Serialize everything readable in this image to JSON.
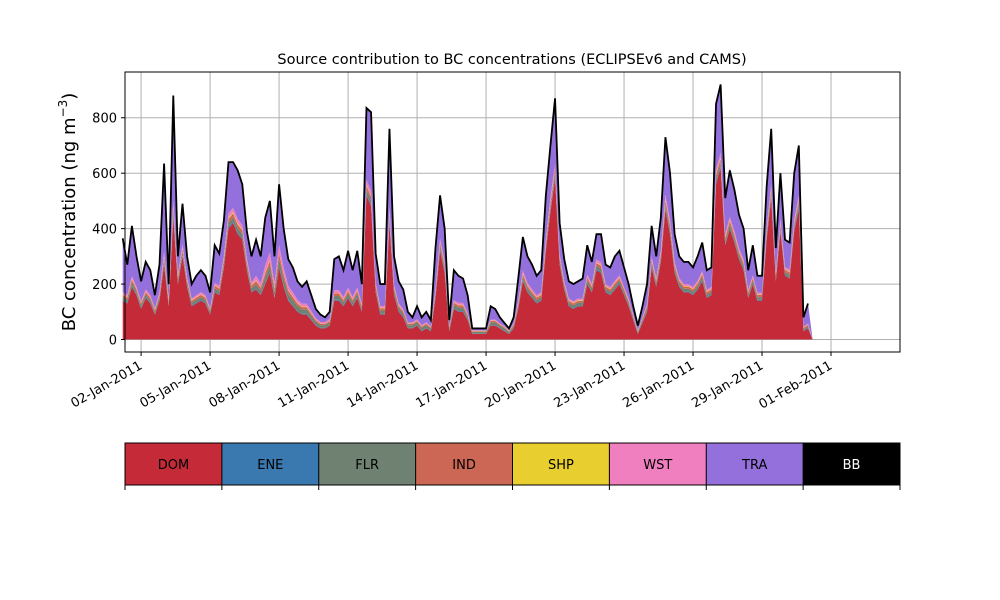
{
  "chart_data": {
    "type": "area",
    "title": "Source contribution to BC concentrations (ECLIPSEv6 and CAMS)",
    "ylabel_main": "BC concentration (ng m",
    "ylabel_sup": "−3",
    "ylabel_close": ")",
    "xlabel": "",
    "ylim": [
      -45,
      965
    ],
    "xlim_days": [
      -0.7,
      33.0
    ],
    "yticks": [
      0,
      200,
      400,
      600,
      800
    ],
    "ytick_labels": [
      "0",
      "200",
      "400",
      "600",
      "800"
    ],
    "xtick_labels": [
      "02-Jan-2011",
      "05-Jan-2011",
      "08-Jan-2011",
      "11-Jan-2011",
      "14-Jan-2011",
      "17-Jan-2011",
      "20-Jan-2011",
      "23-Jan-2011",
      "26-Jan-2011",
      "29-Jan-2011",
      "01-Feb-2011"
    ],
    "xticks_days": [
      0,
      3,
      6,
      9,
      12,
      15,
      18,
      21,
      24,
      27,
      30
    ],
    "grid": true,
    "x_days": [
      -0.8,
      -0.6,
      -0.4,
      -0.2,
      0.0,
      0.2,
      0.4,
      0.6,
      0.8,
      1.0,
      1.2,
      1.4,
      1.6,
      1.8,
      2.0,
      2.2,
      2.4,
      2.6,
      2.8,
      3.0,
      3.2,
      3.4,
      3.6,
      3.8,
      4.0,
      4.2,
      4.4,
      4.6,
      4.8,
      5.0,
      5.2,
      5.4,
      5.6,
      5.8,
      6.0,
      6.2,
      6.4,
      6.6,
      6.8,
      7.0,
      7.2,
      7.4,
      7.6,
      7.8,
      8.0,
      8.2,
      8.4,
      8.6,
      8.8,
      9.0,
      9.2,
      9.4,
      9.6,
      9.8,
      10.0,
      10.2,
      10.4,
      10.6,
      10.8,
      11.0,
      11.2,
      11.4,
      11.6,
      11.8,
      12.0,
      12.2,
      12.4,
      12.6,
      12.8,
      13.0,
      13.2,
      13.4,
      13.6,
      13.8,
      14.0,
      14.2,
      14.4,
      14.6,
      14.8,
      15.0,
      15.2,
      15.4,
      15.6,
      15.8,
      16.0,
      16.2,
      16.4,
      16.6,
      16.8,
      17.0,
      17.2,
      17.4,
      17.6,
      17.8,
      18.0,
      18.2,
      18.4,
      18.6,
      18.8,
      19.0,
      19.2,
      19.4,
      19.6,
      19.8,
      20.0,
      20.2,
      20.4,
      20.6,
      20.8,
      21.0,
      21.2,
      21.4,
      21.6,
      21.8,
      22.0,
      22.2,
      22.4,
      22.6,
      22.8,
      23.0,
      23.2,
      23.4,
      23.6,
      23.8,
      24.0,
      24.2,
      24.4,
      24.6,
      24.8,
      25.0,
      25.2,
      25.4,
      25.6,
      25.8,
      26.0,
      26.2,
      26.4,
      26.6,
      26.8,
      27.0,
      27.2,
      27.4,
      27.6,
      27.8,
      28.0,
      28.2,
      28.4,
      28.6,
      28.8,
      29.0,
      29.2,
      29.4,
      29.6,
      29.8,
      30.0
    ],
    "total": [
      365,
      270,
      410,
      300,
      210,
      280,
      250,
      160,
      270,
      635,
      200,
      880,
      300,
      490,
      300,
      200,
      230,
      250,
      230,
      170,
      340,
      310,
      430,
      640,
      640,
      610,
      560,
      390,
      300,
      360,
      300,
      440,
      500,
      300,
      560,
      400,
      290,
      260,
      210,
      190,
      210,
      160,
      110,
      90,
      80,
      100,
      290,
      300,
      250,
      320,
      250,
      320,
      200,
      835,
      820,
      310,
      200,
      200,
      760,
      300,
      210,
      180,
      100,
      80,
      120,
      80,
      100,
      70,
      330,
      520,
      400,
      70,
      250,
      230,
      220,
      160,
      40,
      40,
      40,
      40,
      120,
      110,
      80,
      60,
      40,
      80,
      220,
      370,
      300,
      270,
      230,
      250,
      520,
      700,
      870,
      420,
      290,
      210,
      200,
      210,
      220,
      340,
      280,
      380,
      380,
      270,
      260,
      300,
      320,
      260,
      200,
      120,
      50,
      120,
      200,
      410,
      300,
      440,
      730,
      600,
      380,
      300,
      280,
      280,
      260,
      300,
      350,
      250,
      260,
      850,
      920,
      510,
      610,
      540,
      450,
      400,
      250,
      340,
      230,
      230,
      550,
      760,
      330,
      600,
      360,
      350,
      600,
      700,
      80,
      130
    ],
    "series": [
      {
        "name": "DOM",
        "color": "#c42a37",
        "values": [
          140,
          130,
          190,
          160,
          110,
          150,
          130,
          90,
          140,
          270,
          120,
          440,
          200,
          300,
          190,
          120,
          130,
          140,
          130,
          90,
          170,
          160,
          260,
          400,
          420,
          380,
          360,
          250,
          170,
          180,
          160,
          200,
          240,
          150,
          260,
          190,
          140,
          120,
          100,
          90,
          90,
          70,
          50,
          40,
          40,
          50,
          140,
          140,
          120,
          150,
          120,
          150,
          100,
          520,
          480,
          170,
          90,
          90,
          420,
          160,
          100,
          80,
          40,
          40,
          50,
          30,
          40,
          30,
          150,
          320,
          240,
          30,
          110,
          100,
          100,
          70,
          20,
          20,
          20,
          20,
          50,
          50,
          40,
          30,
          20,
          40,
          110,
          210,
          170,
          150,
          130,
          140,
          320,
          460,
          580,
          270,
          180,
          120,
          110,
          120,
          120,
          200,
          170,
          250,
          240,
          170,
          160,
          180,
          200,
          160,
          120,
          70,
          20,
          60,
          100,
          260,
          190,
          280,
          470,
          380,
          240,
          190,
          170,
          170,
          160,
          180,
          210,
          150,
          160,
          560,
          620,
          340,
          400,
          350,
          290,
          250,
          150,
          200,
          140,
          140,
          360,
          510,
          210,
          390,
          230,
          220,
          390,
          470,
          30,
          40
        ]
      },
      {
        "name": "ENE",
        "color": "#3a78b0",
        "values": [
          3,
          3,
          4,
          3,
          3,
          3,
          3,
          2,
          3,
          4,
          3,
          5,
          3,
          4,
          3,
          3,
          3,
          3,
          3,
          2,
          3,
          3,
          4,
          5,
          5,
          5,
          5,
          4,
          3,
          3,
          3,
          4,
          4,
          3,
          4,
          4,
          3,
          3,
          3,
          3,
          3,
          2,
          2,
          2,
          2,
          2,
          3,
          3,
          3,
          3,
          3,
          3,
          2,
          5,
          5,
          3,
          3,
          3,
          5,
          3,
          3,
          2,
          2,
          2,
          2,
          2,
          2,
          2,
          3,
          4,
          4,
          2,
          3,
          3,
          3,
          2,
          1,
          1,
          1,
          1,
          2,
          2,
          2,
          2,
          1,
          2,
          3,
          4,
          3,
          3,
          3,
          3,
          4,
          5,
          5,
          4,
          3,
          3,
          3,
          3,
          3,
          3,
          3,
          4,
          4,
          3,
          3,
          3,
          3,
          3,
          3,
          2,
          1,
          2,
          3,
          4,
          3,
          4,
          5,
          5,
          4,
          3,
          3,
          3,
          3,
          3,
          4,
          3,
          3,
          5,
          5,
          4,
          4,
          4,
          4,
          4,
          3,
          3,
          3,
          3,
          4,
          5,
          3,
          4,
          3,
          3,
          4,
          5,
          2,
          2
        ]
      },
      {
        "name": "FLR",
        "color": "#6f8272",
        "values": [
          10,
          10,
          12,
          10,
          10,
          10,
          10,
          8,
          10,
          15,
          10,
          18,
          12,
          14,
          12,
          10,
          10,
          10,
          10,
          8,
          12,
          12,
          14,
          16,
          16,
          16,
          16,
          14,
          12,
          16,
          14,
          22,
          24,
          18,
          28,
          25,
          22,
          20,
          18,
          16,
          16,
          14,
          12,
          10,
          10,
          10,
          14,
          14,
          12,
          14,
          12,
          14,
          10,
          16,
          16,
          12,
          12,
          12,
          16,
          14,
          12,
          12,
          10,
          10,
          10,
          10,
          10,
          8,
          12,
          14,
          14,
          8,
          12,
          12,
          12,
          10,
          6,
          6,
          6,
          6,
          10,
          10,
          8,
          8,
          6,
          8,
          10,
          12,
          12,
          10,
          10,
          10,
          12,
          14,
          14,
          12,
          10,
          10,
          10,
          10,
          10,
          12,
          10,
          12,
          12,
          10,
          10,
          10,
          10,
          10,
          10,
          8,
          6,
          8,
          10,
          12,
          10,
          12,
          14,
          14,
          12,
          10,
          10,
          10,
          10,
          10,
          12,
          10,
          10,
          14,
          14,
          12,
          12,
          12,
          12,
          12,
          10,
          10,
          10,
          10,
          12,
          14,
          10,
          12,
          10,
          10,
          12,
          14,
          6,
          6
        ]
      },
      {
        "name": "IND",
        "color": "#cc6655",
        "values": [
          8,
          8,
          10,
          8,
          7,
          8,
          8,
          6,
          8,
          12,
          7,
          14,
          9,
          11,
          9,
          7,
          8,
          8,
          8,
          6,
          9,
          9,
          11,
          14,
          14,
          14,
          13,
          11,
          9,
          12,
          10,
          14,
          16,
          12,
          18,
          15,
          12,
          11,
          9,
          8,
          8,
          7,
          6,
          5,
          5,
          5,
          9,
          9,
          8,
          9,
          8,
          9,
          7,
          14,
          14,
          9,
          7,
          7,
          13,
          9,
          7,
          7,
          5,
          5,
          5,
          5,
          5,
          4,
          8,
          12,
          10,
          4,
          8,
          8,
          8,
          6,
          3,
          3,
          3,
          3,
          5,
          5,
          4,
          4,
          3,
          4,
          7,
          10,
          9,
          8,
          8,
          8,
          12,
          14,
          15,
          10,
          8,
          7,
          7,
          7,
          7,
          9,
          8,
          10,
          10,
          8,
          8,
          9,
          9,
          8,
          7,
          5,
          3,
          5,
          7,
          10,
          9,
          11,
          14,
          13,
          10,
          9,
          8,
          8,
          8,
          9,
          10,
          8,
          8,
          14,
          14,
          11,
          12,
          11,
          10,
          10,
          8,
          9,
          8,
          8,
          11,
          13,
          9,
          12,
          9,
          9,
          12,
          13,
          4,
          5
        ]
      },
      {
        "name": "SHP",
        "color": "#e8cf2f",
        "values": [
          2,
          2,
          3,
          2,
          2,
          2,
          2,
          2,
          2,
          3,
          2,
          4,
          2,
          3,
          2,
          2,
          2,
          2,
          2,
          2,
          2,
          2,
          3,
          4,
          4,
          4,
          4,
          3,
          2,
          3,
          2,
          3,
          3,
          2,
          3,
          3,
          2,
          2,
          2,
          2,
          2,
          2,
          1,
          1,
          1,
          1,
          2,
          2,
          2,
          2,
          2,
          2,
          2,
          4,
          4,
          2,
          2,
          2,
          4,
          2,
          2,
          2,
          1,
          1,
          1,
          1,
          1,
          1,
          2,
          3,
          3,
          1,
          2,
          2,
          2,
          2,
          1,
          1,
          1,
          1,
          1,
          1,
          1,
          1,
          1,
          1,
          2,
          3,
          2,
          2,
          2,
          2,
          3,
          4,
          4,
          3,
          2,
          2,
          2,
          2,
          2,
          2,
          2,
          3,
          3,
          2,
          2,
          2,
          2,
          2,
          2,
          1,
          1,
          1,
          2,
          3,
          2,
          3,
          4,
          4,
          3,
          2,
          2,
          2,
          2,
          2,
          3,
          2,
          2,
          4,
          4,
          3,
          3,
          3,
          3,
          3,
          2,
          2,
          2,
          2,
          3,
          4,
          2,
          3,
          2,
          2,
          3,
          4,
          1,
          1
        ]
      },
      {
        "name": "WST",
        "color": "#f07fc0",
        "values": [
          8,
          8,
          10,
          8,
          6,
          8,
          7,
          5,
          8,
          14,
          6,
          18,
          9,
          12,
          9,
          6,
          7,
          8,
          7,
          5,
          9,
          9,
          12,
          16,
          16,
          16,
          15,
          12,
          10,
          16,
          14,
          26,
          28,
          18,
          30,
          22,
          16,
          14,
          12,
          10,
          10,
          8,
          6,
          5,
          5,
          6,
          10,
          10,
          9,
          10,
          9,
          10,
          7,
          18,
          17,
          9,
          7,
          7,
          16,
          9,
          7,
          6,
          4,
          4,
          5,
          4,
          4,
          3,
          8,
          12,
          10,
          3,
          7,
          7,
          7,
          5,
          2,
          2,
          2,
          2,
          4,
          4,
          3,
          3,
          2,
          3,
          7,
          11,
          9,
          8,
          7,
          8,
          12,
          16,
          17,
          10,
          8,
          6,
          6,
          6,
          6,
          9,
          8,
          10,
          10,
          7,
          7,
          8,
          8,
          7,
          6,
          4,
          2,
          4,
          6,
          10,
          8,
          11,
          16,
          14,
          10,
          8,
          7,
          7,
          7,
          8,
          9,
          7,
          7,
          16,
          17,
          11,
          12,
          11,
          10,
          9,
          7,
          8,
          6,
          6,
          11,
          14,
          8,
          12,
          8,
          8,
          12,
          14,
          3,
          4
        ]
      },
      {
        "name": "TRA",
        "color": "#9370db",
        "values": [
          194,
          109,
          181,
          109,
          72,
          99,
          90,
          47,
          99,
          317,
          52,
          381,
          65,
          146,
          75,
          52,
          70,
          79,
          70,
          57,
          135,
          115,
          126,
          185,
          165,
          175,
          147,
          96,
          94,
          130,
          97,
          171,
          185,
          97,
          217,
          141,
          95,
          90,
          66,
          61,
          81,
          57,
          33,
          27,
          17,
          26,
          112,
          122,
          96,
          132,
          96,
          132,
          72,
          258,
          284,
          105,
          79,
          79,
          286,
          103,
          79,
          71,
          38,
          18,
          47,
          28,
          38,
          22,
          147,
          155,
          119,
          22,
          108,
          98,
          88,
          65,
          7,
          7,
          7,
          7,
          48,
          38,
          22,
          12,
          7,
          22,
          81,
          120,
          95,
          89,
          67,
          79,
          147,
          187,
          235,
          111,
          79,
          62,
          62,
          62,
          72,
          105,
          79,
          91,
          101,
          70,
          70,
          88,
          88,
          70,
          52,
          30,
          17,
          40,
          72,
          111,
          78,
          119,
          207,
          156,
          107,
          78,
          80,
          80,
          71,
          88,
          102,
          70,
          70,
          237,
          246,
          125,
          175,
          149,
          121,
          112,
          70,
          108,
          61,
          61,
          149,
          199,
          88,
          167,
          98,
          98,
          167,
          180,
          34,
          72
        ]
      },
      {
        "name": "BB",
        "color": "#000000",
        "values": []
      }
    ],
    "legend_placement": "bottom"
  },
  "legend_labels": [
    "DOM",
    "ENE",
    "FLR",
    "IND",
    "SHP",
    "WST",
    "TRA",
    "BB"
  ],
  "legend_colors": [
    "#c42a37",
    "#3a78b0",
    "#6f8272",
    "#cc6655",
    "#e8cf2f",
    "#f07fc0",
    "#9370db",
    "#000000"
  ],
  "legend_text_colors": [
    "#000000",
    "#000000",
    "#000000",
    "#000000",
    "#000000",
    "#000000",
    "#000000",
    "#ffffff"
  ]
}
